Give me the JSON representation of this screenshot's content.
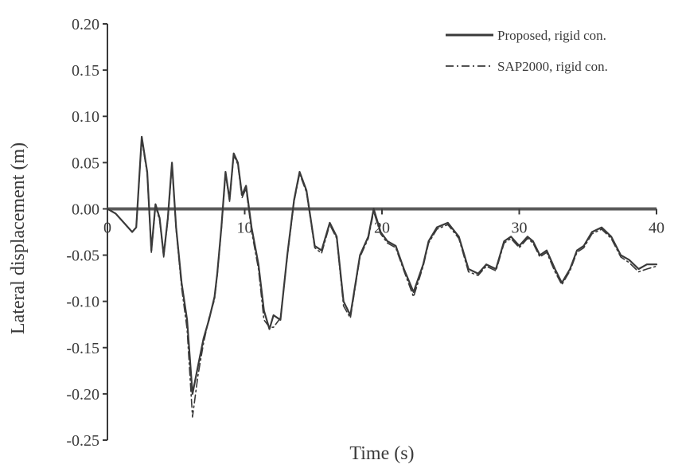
{
  "chart_data": {
    "type": "line",
    "title": "",
    "xlabel": "Time (s)",
    "ylabel": "Lateral displacement (m)",
    "xlim": [
      0,
      40
    ],
    "ylim": [
      -0.25,
      0.2
    ],
    "x_ticks": [
      0,
      10,
      20,
      30,
      40
    ],
    "x_tick_labels": [
      "0",
      "10",
      "20",
      "30",
      "40"
    ],
    "y_ticks": [
      0.2,
      0.15,
      0.1,
      0.05,
      0.0,
      -0.05,
      -0.1,
      -0.15,
      -0.2,
      -0.25
    ],
    "y_tick_labels": [
      "0.20",
      "0.15",
      "0.10",
      "0.05",
      "0.00",
      "-0.05",
      "-0.10",
      "-0.15",
      "-0.20",
      "-0.25"
    ],
    "grid": false,
    "zero_line": true,
    "legend_position": "top-right",
    "series": [
      {
        "name": "Proposed, rigid con.",
        "style": "solid",
        "color": "#3a3a3a",
        "x": [
          0,
          0.6,
          1.2,
          1.8,
          2.1,
          2.5,
          2.9,
          3.2,
          3.5,
          3.8,
          4.1,
          4.4,
          4.7,
          5.0,
          5.4,
          5.8,
          6.2,
          6.6,
          7.0,
          7.4,
          7.8,
          8.0,
          8.3,
          8.6,
          8.9,
          9.2,
          9.5,
          9.8,
          10.1,
          10.5,
          11.0,
          11.4,
          11.8,
          12.1,
          12.6,
          13.1,
          13.6,
          14.0,
          14.5,
          15.1,
          15.6,
          16.2,
          16.7,
          17.2,
          17.7,
          18.4,
          19.0,
          19.4,
          19.9,
          20.4,
          21.0,
          21.6,
          22.3,
          23.0,
          23.4,
          24.0,
          24.8,
          25.6,
          26.3,
          27.0,
          27.6,
          28.3,
          28.9,
          29.4,
          30.0,
          30.6,
          31.0,
          31.5,
          32.0,
          32.6,
          33.1,
          33.7,
          34.2,
          34.7,
          35.3,
          36.0,
          36.7,
          37.4,
          38.0,
          38.7,
          39.3,
          40.0
        ],
        "y": [
          0.0,
          -0.005,
          -0.015,
          -0.025,
          -0.02,
          0.078,
          0.04,
          -0.045,
          0.005,
          -0.01,
          -0.05,
          -0.01,
          0.05,
          -0.02,
          -0.08,
          -0.12,
          -0.2,
          -0.17,
          -0.14,
          -0.12,
          -0.095,
          -0.07,
          -0.02,
          0.04,
          0.01,
          0.06,
          0.05,
          0.015,
          0.025,
          -0.02,
          -0.06,
          -0.11,
          -0.13,
          -0.115,
          -0.12,
          -0.05,
          0.01,
          0.04,
          0.02,
          -0.04,
          -0.045,
          -0.015,
          -0.03,
          -0.1,
          -0.115,
          -0.05,
          -0.03,
          0.0,
          -0.025,
          -0.035,
          -0.04,
          -0.065,
          -0.09,
          -0.06,
          -0.035,
          -0.02,
          -0.015,
          -0.03,
          -0.065,
          -0.07,
          -0.06,
          -0.065,
          -0.035,
          -0.03,
          -0.04,
          -0.03,
          -0.035,
          -0.05,
          -0.045,
          -0.065,
          -0.08,
          -0.065,
          -0.045,
          -0.04,
          -0.025,
          -0.02,
          -0.03,
          -0.05,
          -0.055,
          -0.065,
          -0.06,
          -0.06
        ]
      },
      {
        "name": "SAP2000, rigid con.",
        "style": "dash-dot",
        "color": "#3a3a3a",
        "x": [
          0,
          0.6,
          1.2,
          1.8,
          2.1,
          2.5,
          2.9,
          3.2,
          3.5,
          3.8,
          4.1,
          4.4,
          4.7,
          5.0,
          5.4,
          5.8,
          6.2,
          6.6,
          7.0,
          7.4,
          7.8,
          8.0,
          8.3,
          8.6,
          8.9,
          9.2,
          9.5,
          9.8,
          10.1,
          10.5,
          11.0,
          11.4,
          11.8,
          12.1,
          12.6,
          13.1,
          13.6,
          14.0,
          14.5,
          15.1,
          15.6,
          16.2,
          16.7,
          17.2,
          17.7,
          18.4,
          19.0,
          19.4,
          19.9,
          20.4,
          21.0,
          21.6,
          22.3,
          23.0,
          23.4,
          24.0,
          24.8,
          25.6,
          26.3,
          27.0,
          27.6,
          28.3,
          28.9,
          29.4,
          30.0,
          30.6,
          31.0,
          31.5,
          32.0,
          32.6,
          33.1,
          33.7,
          34.2,
          34.7,
          35.3,
          36.0,
          36.7,
          37.4,
          38.0,
          38.7,
          39.3,
          40.0
        ],
        "y": [
          0.0,
          -0.005,
          -0.015,
          -0.025,
          -0.02,
          0.075,
          0.038,
          -0.047,
          0.003,
          -0.012,
          -0.052,
          -0.012,
          0.048,
          -0.022,
          -0.085,
          -0.13,
          -0.225,
          -0.18,
          -0.145,
          -0.118,
          -0.098,
          -0.072,
          -0.022,
          0.038,
          0.008,
          0.058,
          0.048,
          0.012,
          0.022,
          -0.024,
          -0.065,
          -0.12,
          -0.128,
          -0.128,
          -0.118,
          -0.052,
          0.008,
          0.038,
          0.018,
          -0.042,
          -0.048,
          -0.017,
          -0.032,
          -0.105,
          -0.118,
          -0.052,
          -0.032,
          -0.003,
          -0.027,
          -0.037,
          -0.042,
          -0.067,
          -0.095,
          -0.062,
          -0.037,
          -0.022,
          -0.017,
          -0.032,
          -0.068,
          -0.072,
          -0.062,
          -0.067,
          -0.037,
          -0.032,
          -0.042,
          -0.032,
          -0.037,
          -0.052,
          -0.047,
          -0.068,
          -0.082,
          -0.067,
          -0.047,
          -0.042,
          -0.027,
          -0.022,
          -0.032,
          -0.052,
          -0.058,
          -0.068,
          -0.065,
          -0.062
        ]
      }
    ]
  }
}
